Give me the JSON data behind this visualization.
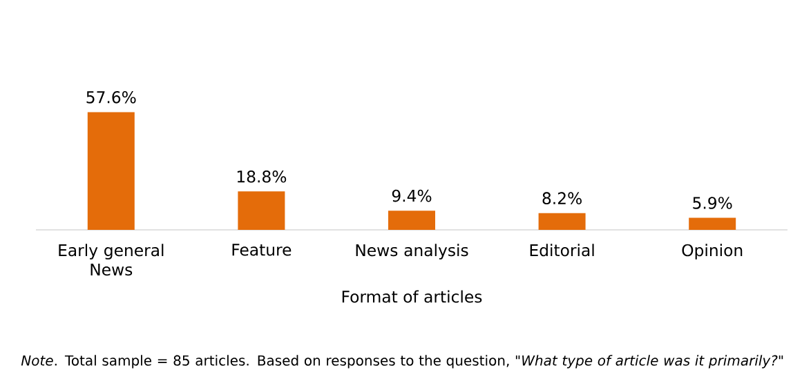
{
  "chart_data": {
    "type": "bar",
    "xlabel": "Format of articles",
    "categories": [
      "Early general News",
      "Feature",
      "News analysis",
      "Editorial",
      "Opinion"
    ],
    "values": [
      57.6,
      18.8,
      9.4,
      8.2,
      5.9
    ],
    "value_labels": [
      "57.6%",
      "18.8%",
      "9.4%",
      "8.2%",
      "5.9%"
    ],
    "color": "#e46c0a",
    "annotations": [
      "*Note*. Total sample = 85 articles. Based on responses to the question, *\"What type of article was it primarily?\"*"
    ]
  }
}
